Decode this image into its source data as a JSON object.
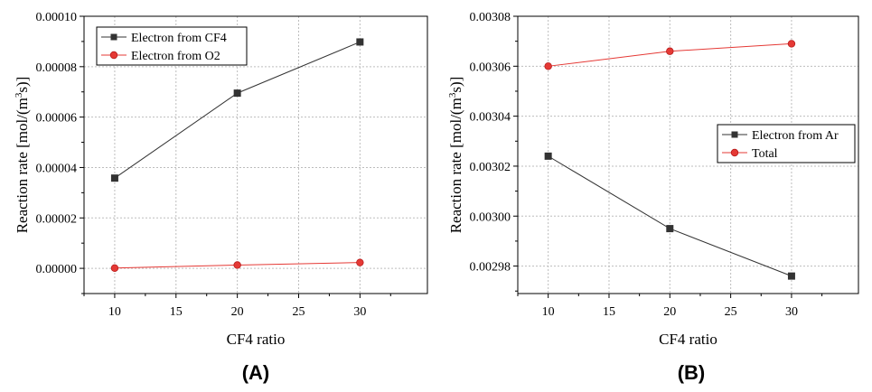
{
  "chart_data": [
    {
      "type": "line",
      "panel_label": "(A)",
      "xlabel": "CF4 ratio",
      "ylabel_main": "Reaction rate [mol/(m",
      "ylabel_sup": "3",
      "ylabel_tail": "s)]",
      "xlim": [
        7.5,
        35.5
      ],
      "ylim": [
        -1e-05,
        0.0001
      ],
      "xticks": [
        10,
        15,
        20,
        25,
        30
      ],
      "xtick_labels": [
        "10",
        "15",
        "20",
        "25",
        "30"
      ],
      "yticks": [
        0,
        2e-05,
        4e-05,
        6e-05,
        8e-05,
        0.0001
      ],
      "ytick_labels": [
        "0.00000",
        "0.00002",
        "0.00004",
        "0.00006",
        "0.00008",
        "0.00010"
      ],
      "grid": true,
      "legend_position": "top-left",
      "x": [
        10,
        20,
        30
      ],
      "series": [
        {
          "name": "Electron from CF4",
          "values": [
            3.58e-05,
            6.95e-05,
            8.98e-05
          ],
          "color": "#333333",
          "marker": "square"
        },
        {
          "name": "Electron from O2",
          "values": [
            1e-07,
            1.3e-06,
            2.3e-06
          ],
          "color": "#e53935",
          "marker": "circle"
        }
      ]
    },
    {
      "type": "line",
      "panel_label": "(B)",
      "xlabel": "CF4 ratio",
      "ylabel_main": "Reaction rate [mol/(m",
      "ylabel_sup": "3",
      "ylabel_tail": "s)]",
      "xlim": [
        7.5,
        35.5
      ],
      "ylim": [
        0.002969,
        0.00308
      ],
      "xticks": [
        10,
        15,
        20,
        25,
        30
      ],
      "xtick_labels": [
        "10",
        "15",
        "20",
        "25",
        "30"
      ],
      "yticks": [
        0.00298,
        0.003,
        0.00302,
        0.00304,
        0.00306,
        0.00308
      ],
      "ytick_labels": [
        "0.00298",
        "0.00300",
        "0.00302",
        "0.00304",
        "0.00306",
        "0.00308"
      ],
      "grid": true,
      "legend_position": "right",
      "x": [
        10,
        20,
        30
      ],
      "series": [
        {
          "name": "Electron from Ar",
          "values": [
            0.003024,
            0.002995,
            0.002976
          ],
          "color": "#333333",
          "marker": "square"
        },
        {
          "name": "Total",
          "values": [
            0.00306,
            0.003066,
            0.003069
          ],
          "color": "#e53935",
          "marker": "circle"
        }
      ]
    }
  ]
}
